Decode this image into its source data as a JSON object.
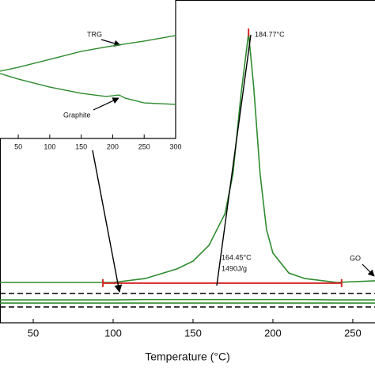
{
  "chart_data": [
    {
      "type": "line",
      "xlabel": "Temperature (°C)",
      "xlim": [
        29.2,
        263.9
      ],
      "xticks": [
        50,
        100,
        150,
        200,
        250
      ],
      "ylim": [
        0,
        100
      ],
      "x": [
        29.2,
        60,
        100,
        120,
        140,
        150,
        160,
        170,
        175,
        180,
        184.77,
        188,
        192,
        196,
        200,
        210,
        220,
        240,
        263.9
      ],
      "series": [
        {
          "color": "#2e8b2e",
          "style": "solid",
          "values": [
            12.5,
            12.5,
            12.5,
            13.7,
            16.7,
            19.1,
            24.0,
            33.8,
            46.1,
            70.6,
            89.7,
            73.0,
            46.1,
            28.9,
            21.6,
            15.4,
            13.7,
            12.5,
            13.0
          ]
        },
        {
          "color": "#000000",
          "style": "dashed",
          "values": [
            9.1,
            9.1,
            9.1,
            9.1,
            9.1,
            9.1,
            9.1,
            9.1,
            9.1,
            9.1,
            9.1,
            9.1,
            9.1,
            9.1,
            9.1,
            9.1,
            9.1,
            9.1,
            9.1
          ]
        },
        {
          "color": "#2e8b2e",
          "style": "solid",
          "values": [
            7.1,
            7.1,
            7.1,
            7.2,
            7.2,
            7.2,
            7.2,
            7.2,
            7.2,
            7.2,
            7.2,
            7.2,
            7.2,
            7.2,
            7.2,
            7.2,
            7.2,
            7.1,
            7.1
          ]
        },
        {
          "color": "#2e8b2e",
          "style": "solid",
          "values": [
            6.1,
            6.1,
            6.1,
            6.1,
            6.1,
            6.1,
            6.1,
            6.1,
            6.1,
            6.1,
            6.1,
            6.1,
            6.1,
            6.1,
            6.1,
            6.1,
            6.1,
            6.1,
            6.1
          ]
        },
        {
          "color": "#000000",
          "style": "dashed",
          "values": [
            4.9,
            4.9,
            4.9,
            4.9,
            4.9,
            4.9,
            4.9,
            4.9,
            4.9,
            4.9,
            4.9,
            4.9,
            4.9,
            4.9,
            4.9,
            4.9,
            4.9,
            4.9,
            4.9
          ]
        }
      ],
      "span": {
        "x": [
          93.6,
          243
        ],
        "y": 12.3,
        "color": "#d62728"
      },
      "peak": {
        "x": 184.77,
        "y": 89.7,
        "color": "#d62728"
      },
      "annotations": [
        "184.77°C",
        "164.45°C",
        "1490J/g",
        "GO"
      ]
    },
    {
      "type": "line",
      "xlim": [
        21,
        300
      ],
      "xticks": [
        50,
        100,
        150,
        200,
        250,
        300
      ],
      "ylim": [
        0,
        100
      ],
      "series": [
        {
          "color": "#2e8b2e",
          "x": [
            21,
            50,
            100,
            150,
            200,
            250,
            300
          ],
          "values": [
            48.6,
            51.4,
            57.1,
            62.9,
            66.9,
            70.3,
            74.3
          ]
        },
        {
          "color": "#2e8b2e",
          "x": [
            21,
            50,
            100,
            150,
            190,
            210,
            220,
            250,
            300
          ],
          "values": [
            46.9,
            42.9,
            37.1,
            32.6,
            30.3,
            31.4,
            29.1,
            25.7,
            24.6
          ]
        }
      ],
      "annotations": [
        "TRG",
        "Graphite"
      ]
    }
  ]
}
